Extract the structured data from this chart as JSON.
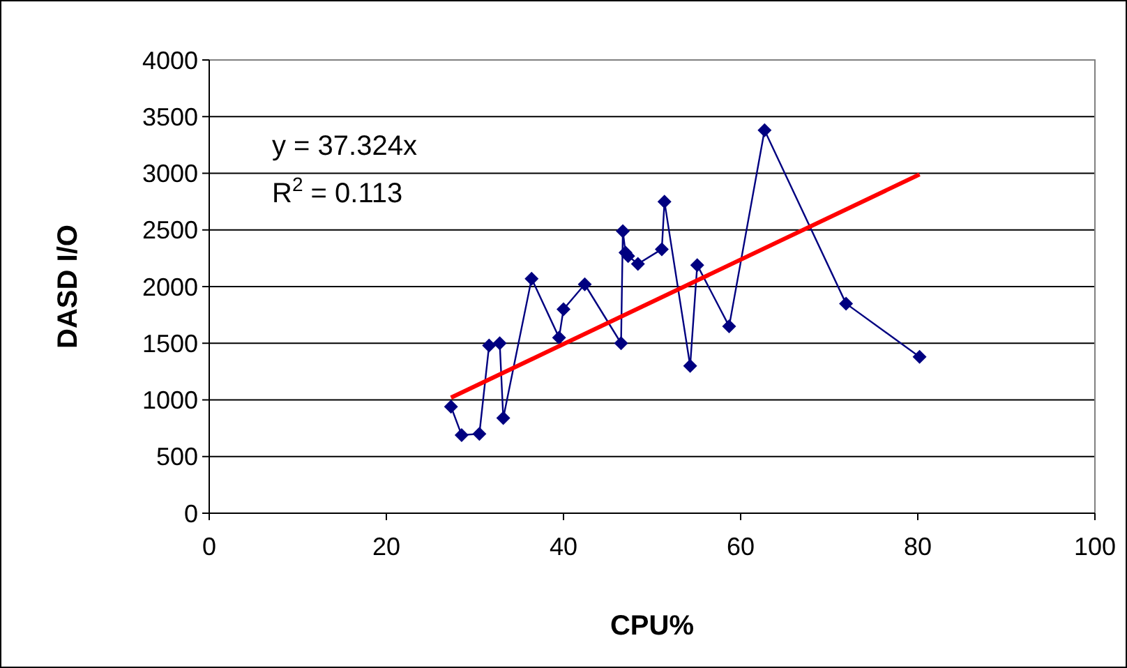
{
  "chart_data": {
    "type": "line",
    "xlabel": "CPU%",
    "ylabel": "DASD I/O",
    "xlim": [
      0,
      100
    ],
    "xticks": [
      0,
      20,
      40,
      60,
      80,
      100
    ],
    "ylim": [
      0,
      4000
    ],
    "yticks": [
      0,
      500,
      1000,
      1500,
      2000,
      2500,
      3000,
      3500,
      4000
    ],
    "grid": "y",
    "annotations": [
      "y = 37.324x",
      "R$^{2}$ = 0.113"
    ],
    "series": [
      {
        "color": "#000080",
        "marker": "diamond",
        "x": [
          27.3,
          28.5,
          30.5,
          31.6,
          32.8,
          33.2,
          36.4,
          39.5,
          40.0,
          42.4,
          46.5,
          46.7,
          47.0,
          47.3,
          48.4,
          51.1,
          51.4,
          54.3,
          55.1,
          58.7,
          62.7,
          71.9,
          80.2
        ],
        "values": [
          940,
          690,
          700,
          1480,
          1500,
          840,
          2070,
          1550,
          1800,
          2020,
          1500,
          2490,
          2300,
          2270,
          2200,
          2330,
          2750,
          1300,
          2190,
          1650,
          3380,
          1850,
          1380
        ]
      },
      {
        "color": "#ff0000",
        "marker": "none",
        "x": [
          27.3,
          80.2
        ],
        "values": [
          1020,
          2990
        ]
      }
    ]
  }
}
